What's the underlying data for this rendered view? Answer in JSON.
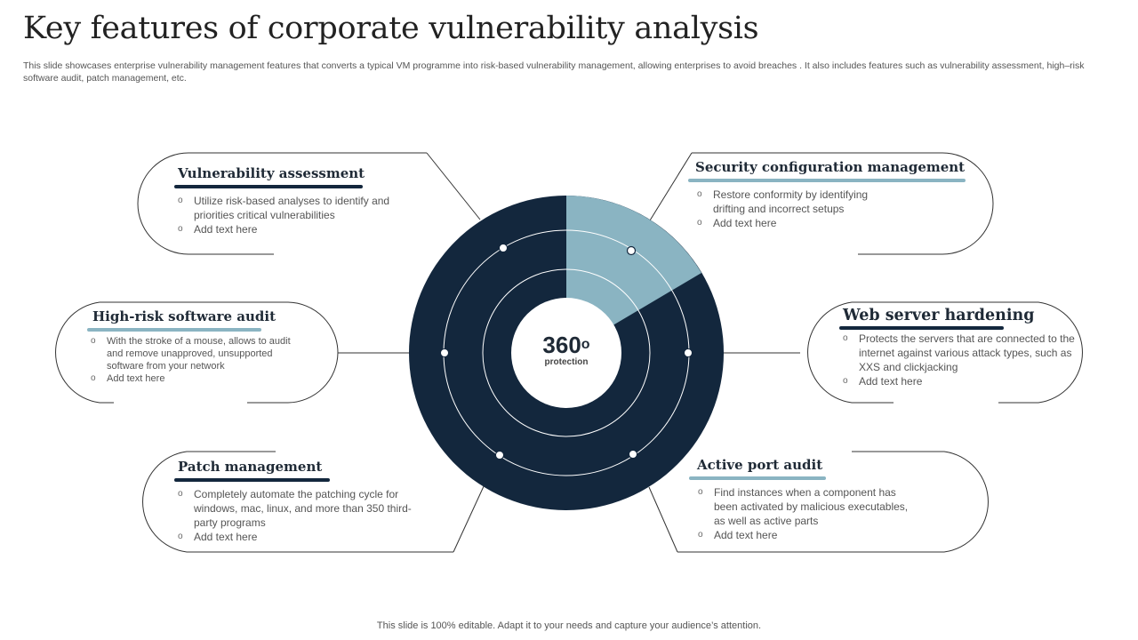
{
  "header": {
    "title": "Key features of corporate vulnerability analysis",
    "subtitle": "This slide showcases enterprise vulnerability management features that converts a typical VM  programme into risk-based vulnerability management, allowing enterprises to avoid breaches . It also includes features such as vulnerability assessment, high–risk software audit, patch management, etc."
  },
  "center": {
    "big": "360",
    "sup": "o",
    "small": "protection"
  },
  "colors": {
    "dark": "#13273d",
    "light": "#8ab4c2",
    "outline": "#333333"
  },
  "bullet_glyph": "o",
  "features": [
    {
      "title": "Vulnerability assessment",
      "bullets": [
        "Utilize risk-based analyses to identify and priorities critical vulnerabilities",
        "Add text here"
      ]
    },
    {
      "title": "High-risk software audit",
      "bullets": [
        "With the stroke of a mouse, allows to audit and remove unapproved, unsupported software from your network",
        "Add text here"
      ]
    },
    {
      "title": "Patch management",
      "bullets": [
        "Completely automate the patching cycle for windows, mac, linux, and more than 350 third-party programs",
        "Add text here"
      ]
    },
    {
      "title": "Security configuration management",
      "bullets": [
        "Restore conformity by identifying drifting and incorrect setups",
        "Add text here"
      ]
    },
    {
      "title": "Web server hardening",
      "bullets": [
        "Protects the servers  that are connected to the internet against various  attack types, such as XXS  and clickjacking",
        "Add text here"
      ]
    },
    {
      "title": "Active port audit",
      "bullets": [
        "Find instances when a component has been activated  by malicious executables, as well as active parts",
        "Add text here"
      ]
    }
  ],
  "footer": "This slide is 100% editable. Adapt it to your needs and capture your audience’s attention."
}
